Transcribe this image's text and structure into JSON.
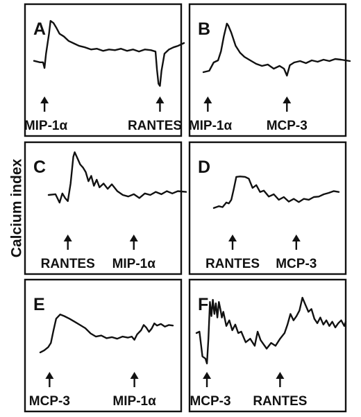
{
  "ylabel": "Calcium index",
  "chart_data": [
    {
      "type": "line",
      "panel": "A",
      "stimuli": [
        {
          "label": "MIP-1α",
          "t": 0.07
        },
        {
          "label": "RANTES",
          "t": 0.84
        }
      ],
      "x": [
        0.0,
        0.04,
        0.06,
        0.07,
        0.08,
        0.1,
        0.11,
        0.13,
        0.15,
        0.17,
        0.2,
        0.23,
        0.27,
        0.3,
        0.34,
        0.38,
        0.42,
        0.46,
        0.5,
        0.54,
        0.58,
        0.62,
        0.66,
        0.7,
        0.74,
        0.78,
        0.81,
        0.82,
        0.83,
        0.84,
        0.85,
        0.87,
        0.9,
        0.93,
        0.96,
        1.0
      ],
      "values": [
        0.42,
        0.4,
        0.4,
        0.32,
        0.52,
        0.8,
        0.98,
        0.95,
        0.88,
        0.8,
        0.76,
        0.7,
        0.66,
        0.63,
        0.61,
        0.58,
        0.59,
        0.56,
        0.58,
        0.57,
        0.59,
        0.56,
        0.58,
        0.55,
        0.58,
        0.57,
        0.55,
        0.3,
        0.1,
        0.07,
        0.28,
        0.52,
        0.58,
        0.61,
        0.63,
        0.67
      ]
    },
    {
      "type": "line",
      "panel": "B",
      "stimuli": [
        {
          "label": "MIP-1α",
          "t": 0.03
        },
        {
          "label": "MCP-3",
          "t": 0.57
        }
      ],
      "x": [
        0.0,
        0.04,
        0.07,
        0.1,
        0.12,
        0.14,
        0.16,
        0.17,
        0.19,
        0.22,
        0.25,
        0.28,
        0.32,
        0.36,
        0.4,
        0.44,
        0.48,
        0.52,
        0.55,
        0.57,
        0.59,
        0.62,
        0.66,
        0.7,
        0.74,
        0.78,
        0.82,
        0.86,
        0.9,
        0.94,
        1.0
      ],
      "values": [
        0.28,
        0.3,
        0.42,
        0.45,
        0.58,
        0.8,
        0.98,
        0.95,
        0.85,
        0.66,
        0.56,
        0.5,
        0.45,
        0.4,
        0.37,
        0.39,
        0.33,
        0.37,
        0.33,
        0.23,
        0.38,
        0.42,
        0.44,
        0.41,
        0.45,
        0.43,
        0.46,
        0.44,
        0.47,
        0.46,
        0.44
      ]
    },
    {
      "type": "line",
      "panel": "C",
      "stimuli": [
        {
          "label": "RANTES",
          "t": 0.14
        },
        {
          "label": "MIP-1α",
          "t": 0.62
        }
      ],
      "x": [
        0.0,
        0.05,
        0.08,
        0.1,
        0.12,
        0.14,
        0.16,
        0.18,
        0.19,
        0.21,
        0.23,
        0.25,
        0.27,
        0.29,
        0.31,
        0.33,
        0.35,
        0.37,
        0.4,
        0.43,
        0.46,
        0.5,
        0.54,
        0.58,
        0.62,
        0.66,
        0.7,
        0.74,
        0.78,
        0.82,
        0.86,
        0.9,
        0.94,
        1.0
      ],
      "values": [
        0.4,
        0.41,
        0.3,
        0.42,
        0.36,
        0.32,
        0.55,
        0.9,
        0.96,
        0.88,
        0.8,
        0.76,
        0.7,
        0.58,
        0.65,
        0.52,
        0.6,
        0.5,
        0.55,
        0.48,
        0.54,
        0.45,
        0.4,
        0.38,
        0.41,
        0.36,
        0.42,
        0.4,
        0.44,
        0.41,
        0.45,
        0.42,
        0.45,
        0.44
      ]
    },
    {
      "type": "line",
      "panel": "D",
      "stimuli": [
        {
          "label": "RANTES",
          "t": 0.15
        },
        {
          "label": "MCP-3",
          "t": 0.66
        }
      ],
      "x": [
        0.0,
        0.04,
        0.07,
        0.1,
        0.12,
        0.14,
        0.16,
        0.18,
        0.21,
        0.25,
        0.28,
        0.31,
        0.34,
        0.37,
        0.4,
        0.44,
        0.48,
        0.52,
        0.56,
        0.6,
        0.64,
        0.68,
        0.72,
        0.76,
        0.8,
        0.84,
        0.88,
        0.92,
        0.96,
        1.0
      ],
      "values": [
        0.2,
        0.24,
        0.22,
        0.32,
        0.3,
        0.38,
        0.62,
        0.88,
        0.89,
        0.88,
        0.84,
        0.64,
        0.7,
        0.55,
        0.58,
        0.45,
        0.5,
        0.38,
        0.44,
        0.34,
        0.4,
        0.33,
        0.4,
        0.38,
        0.44,
        0.45,
        0.5,
        0.53,
        0.57,
        0.55
      ]
    },
    {
      "type": "line",
      "panel": "E",
      "stimuli": [
        {
          "label": "MCP-3",
          "t": 0.07
        },
        {
          "label": "MIP-1α",
          "t": 0.71
        }
      ],
      "x": [
        0.0,
        0.03,
        0.06,
        0.08,
        0.1,
        0.12,
        0.15,
        0.18,
        0.22,
        0.26,
        0.3,
        0.34,
        0.38,
        0.42,
        0.46,
        0.5,
        0.54,
        0.58,
        0.62,
        0.66,
        0.69,
        0.71,
        0.73,
        0.76,
        0.78,
        0.8,
        0.82,
        0.84,
        0.86,
        0.88,
        0.91,
        0.94,
        0.97,
        1.0
      ],
      "values": [
        0.08,
        0.12,
        0.18,
        0.26,
        0.5,
        0.72,
        0.8,
        0.77,
        0.72,
        0.66,
        0.6,
        0.54,
        0.44,
        0.38,
        0.4,
        0.35,
        0.37,
        0.34,
        0.38,
        0.36,
        0.38,
        0.32,
        0.42,
        0.5,
        0.6,
        0.55,
        0.47,
        0.53,
        0.63,
        0.59,
        0.62,
        0.57,
        0.6,
        0.59
      ]
    },
    {
      "type": "line",
      "panel": "F",
      "stimuli": [
        {
          "label": "MCP-3",
          "t": 0.07
        },
        {
          "label": "RANTES",
          "t": 0.56
        }
      ],
      "x": [
        0.0,
        0.02,
        0.04,
        0.06,
        0.07,
        0.08,
        0.09,
        0.1,
        0.11,
        0.12,
        0.13,
        0.14,
        0.15,
        0.16,
        0.17,
        0.18,
        0.2,
        0.22,
        0.24,
        0.26,
        0.28,
        0.3,
        0.33,
        0.36,
        0.39,
        0.41,
        0.43,
        0.45,
        0.47,
        0.5,
        0.53,
        0.56,
        0.59,
        0.61,
        0.63,
        0.65,
        0.67,
        0.69,
        0.71,
        0.73,
        0.75,
        0.77,
        0.79,
        0.81,
        0.83,
        0.85,
        0.87,
        0.89,
        0.91,
        0.93,
        0.95,
        0.97,
        0.99,
        1.0
      ],
      "values": [
        0.48,
        0.5,
        0.15,
        0.12,
        0.05,
        0.4,
        0.92,
        0.72,
        0.95,
        0.75,
        0.9,
        0.7,
        0.92,
        0.82,
        0.7,
        0.78,
        0.58,
        0.66,
        0.52,
        0.6,
        0.48,
        0.5,
        0.35,
        0.4,
        0.3,
        0.5,
        0.38,
        0.32,
        0.26,
        0.34,
        0.3,
        0.4,
        0.48,
        0.6,
        0.75,
        0.66,
        0.72,
        0.8,
        0.98,
        0.88,
        0.78,
        0.82,
        0.68,
        0.62,
        0.7,
        0.6,
        0.66,
        0.58,
        0.64,
        0.56,
        0.62,
        0.66,
        0.58,
        0.64
      ]
    }
  ]
}
